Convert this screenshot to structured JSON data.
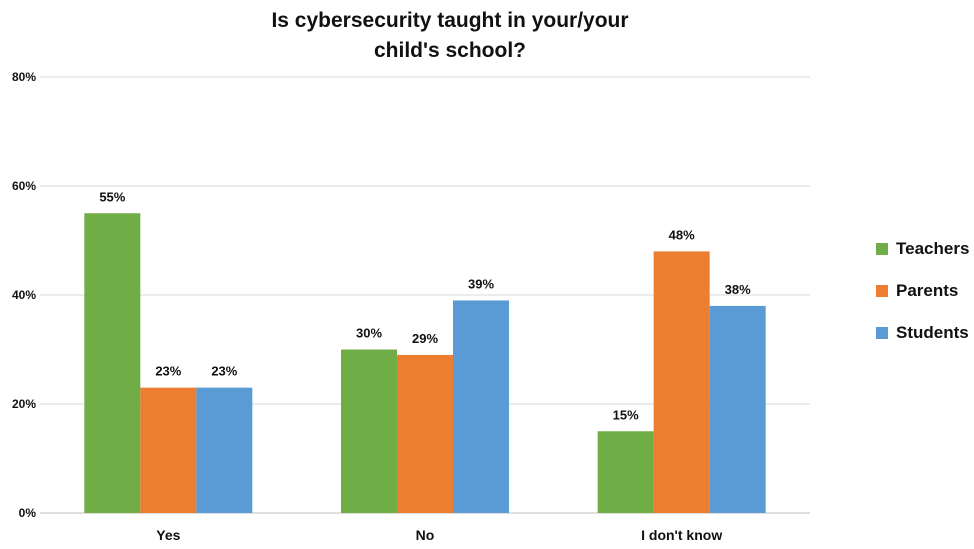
{
  "chart_data": {
    "type": "bar",
    "title_line1": "Is cybersecurity taught in your/your",
    "title_line2": "child's school?",
    "categories": [
      "Yes",
      "No",
      "I don't know"
    ],
    "series": [
      {
        "name": "Teachers",
        "color": "#70ad47",
        "values": [
          55,
          30,
          15
        ],
        "labels": [
          "55%",
          "30%",
          "15%"
        ]
      },
      {
        "name": "Parents",
        "color": "#ed7d31",
        "values": [
          23,
          29,
          48
        ],
        "labels": [
          "23%",
          "29%",
          "48%"
        ]
      },
      {
        "name": "Students",
        "color": "#5b9bd5",
        "values": [
          23,
          39,
          38
        ],
        "labels": [
          "23%",
          "39%",
          "38%"
        ]
      }
    ],
    "y_ticks": [
      "0%",
      "20%",
      "40%",
      "60%",
      "80%"
    ],
    "ylim": [
      0,
      80
    ],
    "grid": true,
    "legend_position": "right"
  }
}
